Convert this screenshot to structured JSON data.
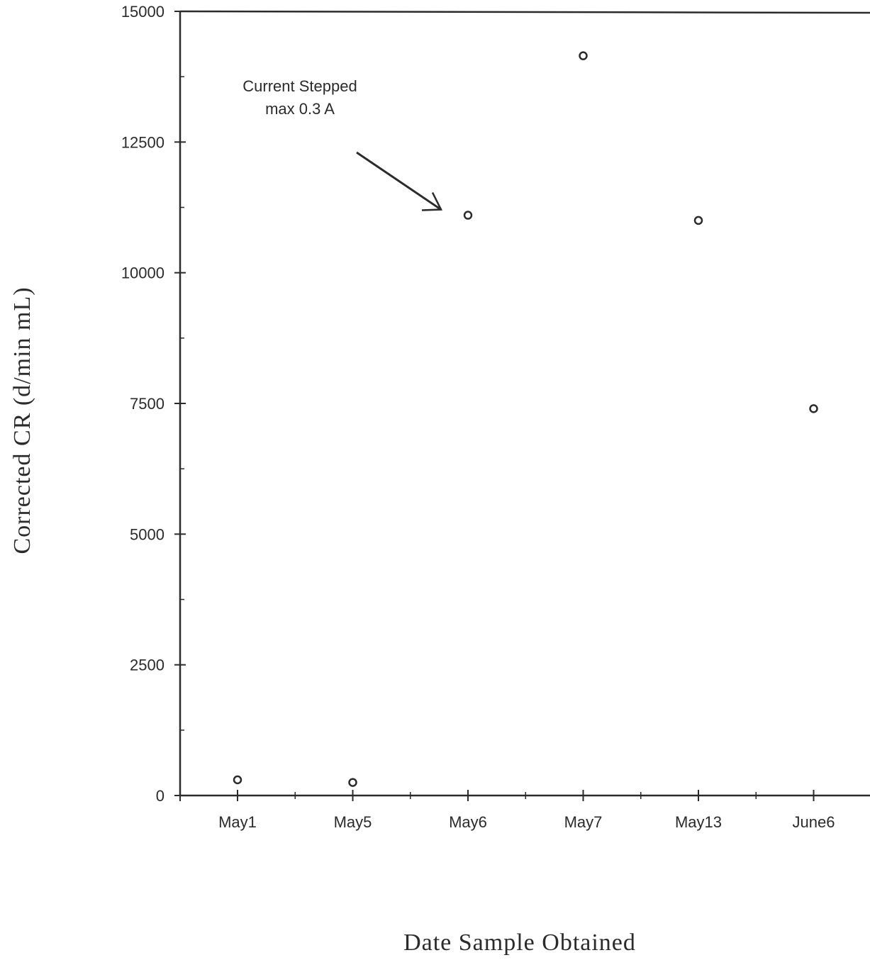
{
  "chart_data": {
    "type": "scatter",
    "categories": [
      "May1",
      "May5",
      "May6",
      "May7",
      "May13",
      "June6"
    ],
    "values": [
      300,
      250,
      11100,
      14150,
      11000,
      7400
    ],
    "ylim": [
      0,
      15000
    ],
    "yticks": [
      0,
      2500,
      5000,
      7500,
      10000,
      12500,
      15000
    ],
    "xlabel": "Date Sample Obtained",
    "ylabel": "Corrected CR (d/min mL)",
    "grid": false,
    "annotations": [
      {
        "lines": [
          "Current Stepped",
          "max 0.3 A"
        ],
        "target_category": "May6"
      }
    ]
  }
}
